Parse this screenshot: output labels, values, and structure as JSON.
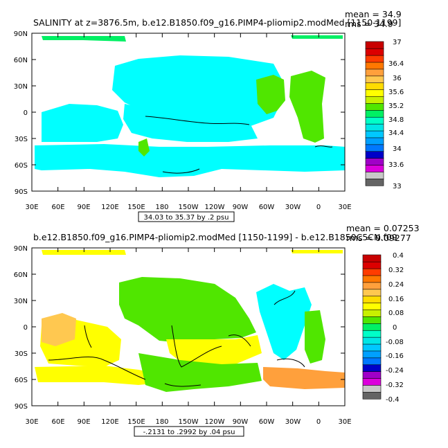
{
  "panels": [
    {
      "title": "SALINITY at z=3876.5m, b.e12.B1850.f09_g16.PIMP4-pliomip2.modMed [1150-1199]",
      "stats": [
        "mean = 34.9",
        "rms = 34.9"
      ],
      "range_label": "34.03 to 35.37 by .2 psu",
      "lat_ticks": [
        "90N",
        "60N",
        "30N",
        "0",
        "30S",
        "60S",
        "90S"
      ],
      "lon_ticks": [
        "30E",
        "60E",
        "90E",
        "120E",
        "150E",
        "180",
        "150W",
        "120W",
        "90W",
        "60W",
        "30W",
        "0",
        "30E"
      ],
      "colorbar": {
        "colors": [
          "#646464",
          "#c8c8c8",
          "#dc00dc",
          "#a000c8",
          "#0000c8",
          "#0078ff",
          "#00a0ff",
          "#00c8ff",
          "#00e6e6",
          "#00ffc8",
          "#00f064",
          "#50e600",
          "#c8f000",
          "#ffff00",
          "#ffdc00",
          "#ffc850",
          "#ffa03c",
          "#ff7800",
          "#ff3c00",
          "#dc0000",
          "#c80000"
        ],
        "labels": [
          "33",
          "33.6",
          "34",
          "34.4",
          "34.8",
          "35.2",
          "35.6",
          "36",
          "36.4",
          "37"
        ]
      }
    },
    {
      "title": "b.e12.B1850.f09_g16.PIMP4-pliomip2.modMed [1150-1199] - b.e12.B1850C5CN.f09",
      "stats": [
        "mean = 0.07253",
        "rms = 0.09277"
      ],
      "range_label": "-.2131 to .2992 by .04 psu",
      "lat_ticks": [
        "90N",
        "60N",
        "30N",
        "0",
        "30S",
        "60S",
        "90S"
      ],
      "lon_ticks": [
        "30E",
        "60E",
        "90E",
        "120E",
        "150E",
        "180",
        "150W",
        "120W",
        "90W",
        "60W",
        "30W",
        "0",
        "30E"
      ],
      "colorbar": {
        "colors": [
          "#646464",
          "#c8c8c8",
          "#dc00dc",
          "#a000c8",
          "#0000c8",
          "#0078ff",
          "#00a0ff",
          "#00c8ff",
          "#00e6e6",
          "#00ffc8",
          "#00f064",
          "#50e600",
          "#c8f000",
          "#ffff00",
          "#ffdc00",
          "#ffc850",
          "#ffa03c",
          "#ff7800",
          "#ff3c00",
          "#dc0000",
          "#c80000"
        ],
        "labels": [
          "-0.4",
          "-0.32",
          "-0.24",
          "-0.16",
          "-0.08",
          "0",
          "0.08",
          "0.16",
          "0.24",
          "0.32",
          "0.4"
        ]
      }
    }
  ]
}
